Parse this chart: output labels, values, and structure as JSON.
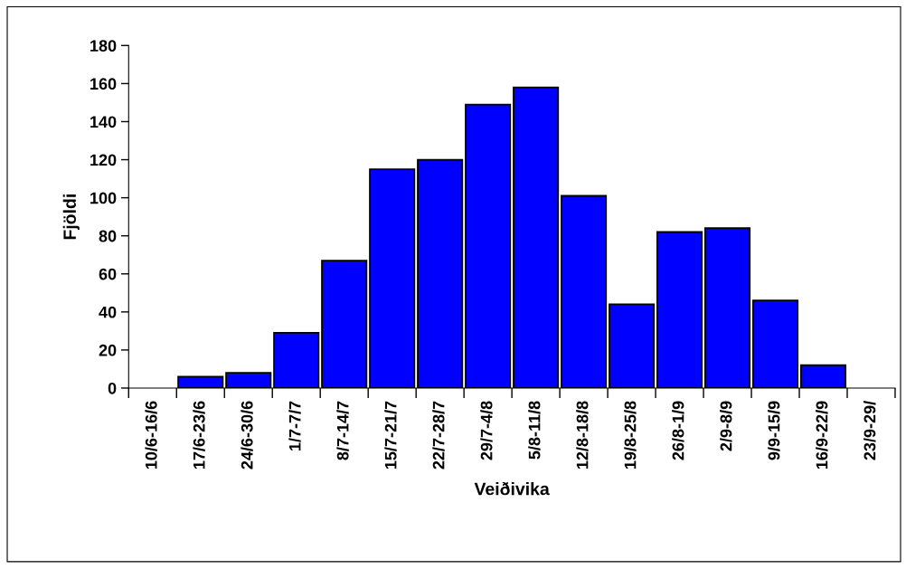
{
  "chart_data": {
    "type": "bar",
    "xlabel": "Veiðivika",
    "ylabel": "Fjöldi",
    "categories": [
      "10/6-16/6",
      "17/6-23/6",
      "24/6-30/6",
      "1/7-7/7",
      "8/7-14/7",
      "15/7-21/7",
      "22/7-28/7",
      "29/7-4/8",
      "5/8-11/8",
      "12/8-18/8",
      "19/8-25/8",
      "26/8-1/9",
      "2/9-8/9",
      "9/9-15/9",
      "16/9-22/9",
      "23/9-29/"
    ],
    "values": [
      0,
      6,
      8,
      29,
      67,
      115,
      120,
      149,
      158,
      101,
      44,
      82,
      84,
      46,
      12,
      0
    ],
    "color": "#0000ff",
    "ylim": [
      0,
      180
    ],
    "yticks": [
      0,
      20,
      40,
      60,
      80,
      100,
      120,
      140,
      160,
      180
    ],
    "grid": false,
    "legend": false
  }
}
